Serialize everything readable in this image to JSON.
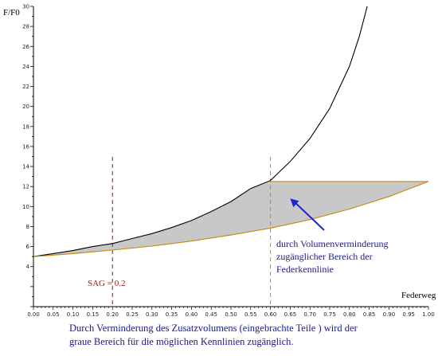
{
  "chart_data": {
    "type": "area",
    "xlabel": "Federweg",
    "ylabel": "F/F0",
    "xlim": [
      0,
      1.0
    ],
    "ylim": [
      0,
      30
    ],
    "x_ticks": [
      "0.00",
      "0.05",
      "0.10",
      "0.15",
      "0.20",
      "0.25",
      "0.30",
      "0.35",
      "0.40",
      "0.45",
      "0.50",
      "0.55",
      "0.60",
      "0.65",
      "0.70",
      "0.75",
      "0.80",
      "0.85",
      "0.90",
      "0.95",
      "1.00"
    ],
    "y_ticks": [
      "4",
      "6",
      "8",
      "10",
      "12",
      "14",
      "16",
      "18",
      "20",
      "22",
      "24",
      "26",
      "28",
      "30"
    ],
    "grid": false,
    "series": [
      {
        "color": "#000000",
        "x": [
          0,
          0.05,
          0.1,
          0.15,
          0.2,
          0.25,
          0.3,
          0.35,
          0.4,
          0.45,
          0.5,
          0.55,
          0.6,
          0.65,
          0.7,
          0.75,
          0.8,
          0.825,
          0.845
        ],
        "y": [
          5.0,
          5.3,
          5.6,
          6.0,
          6.3,
          6.8,
          7.3,
          7.9,
          8.6,
          9.5,
          10.5,
          11.8,
          12.6,
          14.5,
          16.8,
          19.8,
          24.0,
          27.0,
          30.0
        ]
      },
      {
        "color": "#c8860a",
        "x": [
          0,
          0.1,
          0.2,
          0.3,
          0.4,
          0.5,
          0.6,
          0.7,
          0.8,
          0.9,
          1.0
        ],
        "y": [
          5.0,
          5.3,
          5.65,
          6.05,
          6.55,
          7.15,
          7.85,
          8.7,
          9.75,
          11.0,
          12.5
        ]
      },
      {
        "color": "#c8860a",
        "x": [
          0.6,
          1.0
        ],
        "y": [
          12.5,
          12.5
        ]
      }
    ],
    "vlines": [
      {
        "x": 0.2,
        "color": "#8b1a1a"
      },
      {
        "x": 0.6,
        "color": "#c8860a"
      }
    ],
    "shaded_region_color": "#c8c8c8",
    "sag_label": "SAG = 0.2",
    "annotation": {
      "lines": [
        "durch Volumenverminderung",
        "zugänglicher Bereich der",
        "Federkennlinie"
      ],
      "arrow_target_x": 0.65,
      "arrow_target_y": 10.8
    },
    "caption": [
      "Durch Verminderung des Zusatzvolumens (eingebrachte Teile ) wird der",
      "graue Bereich für die möglichen Kennlinien zugänglich."
    ]
  }
}
